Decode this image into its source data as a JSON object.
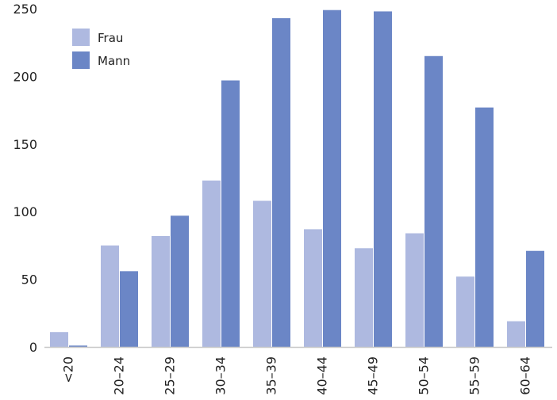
{
  "chart_data": {
    "type": "bar",
    "title": "",
    "xlabel": "",
    "ylabel": "",
    "categories": [
      "<20",
      "20–24",
      "25–29",
      "30–34",
      "35–39",
      "40–44",
      "45–49",
      "50–54",
      "55–59",
      "60–64"
    ],
    "series": [
      {
        "name": "Frau",
        "color": "#aeb9e0",
        "values": [
          11,
          75,
          82,
          123,
          108,
          87,
          73,
          84,
          52,
          19
        ]
      },
      {
        "name": "Mann",
        "color": "#6b86c6",
        "values": [
          1,
          56,
          97,
          197,
          243,
          249,
          248,
          215,
          177,
          71
        ]
      }
    ],
    "ylim": [
      0,
      250
    ],
    "yticks": [
      "0",
      "50",
      "100",
      "150",
      "200",
      "250"
    ],
    "grid": false,
    "legend_position": "top-left"
  }
}
